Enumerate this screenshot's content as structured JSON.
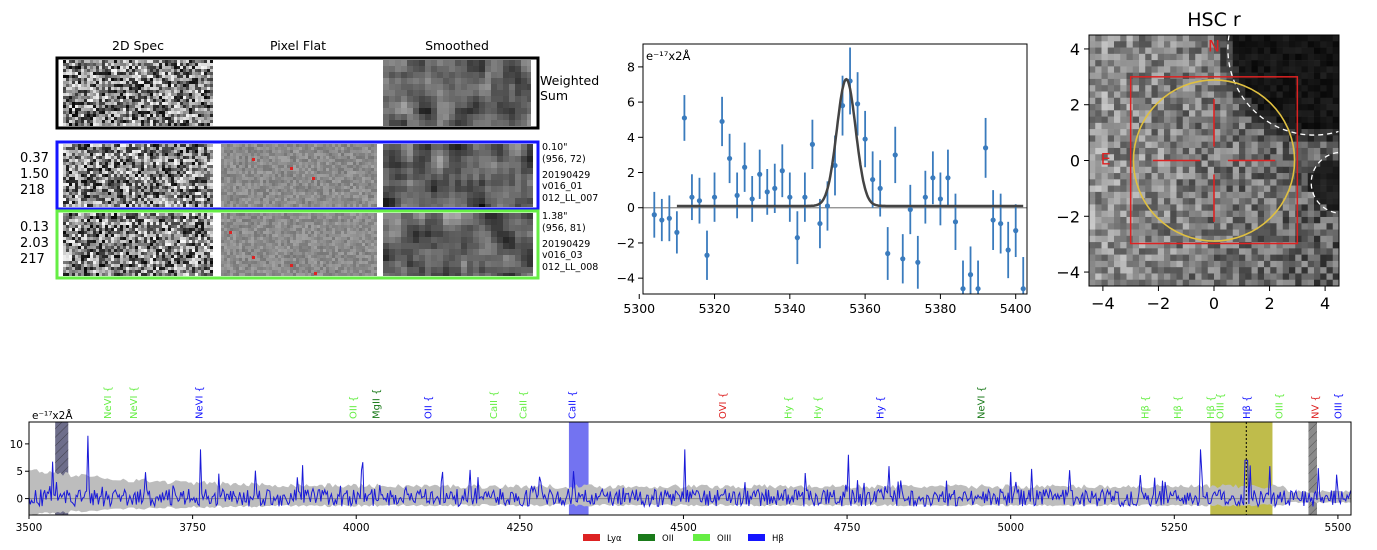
{
  "cutouts": {
    "column_titles": [
      "2D Spec",
      "Pixel Flat",
      "Smoothed"
    ],
    "weighted_label": [
      "Weighted",
      "Sum"
    ],
    "rows": [
      {
        "left_values": [
          "0.37",
          "1.50",
          "218"
        ],
        "info": [
          "0.10\"",
          "(956, 72)",
          "20190429",
          "v016_01",
          "012_LL_007"
        ],
        "frame_color": "#1515ff"
      },
      {
        "left_values": [
          "0.13",
          "2.03",
          "217"
        ],
        "info": [
          "1.38\"",
          "(956, 81)",
          "20190429",
          "v016_03",
          "012_LL_008"
        ],
        "frame_color": "#66ee44"
      }
    ]
  },
  "chart_data": [
    {
      "type": "scatter",
      "title": "",
      "unit_label": "e⁻¹⁷x2Å",
      "xlim": [
        5301,
        5403
      ],
      "ylim": [
        -4.9,
        9.3
      ],
      "x_ticks": [
        5300,
        5320,
        5340,
        5360,
        5380,
        5400
      ],
      "y_ticks": [
        -4,
        -2,
        0,
        2,
        4,
        6,
        8
      ],
      "series": [
        {
          "x": [
            5304,
            5306,
            5308,
            5310,
            5312,
            5314,
            5316,
            5318,
            5320,
            5322,
            5324,
            5326,
            5328,
            5330,
            5332,
            5334,
            5336,
            5338,
            5340,
            5342,
            5344,
            5346,
            5348,
            5350,
            5352,
            5354,
            5356,
            5358,
            5360,
            5362,
            5364,
            5366,
            5368,
            5370,
            5372,
            5374,
            5376,
            5378,
            5380,
            5382,
            5384,
            5386,
            5388,
            5390,
            5392,
            5394,
            5396,
            5398,
            5400,
            5402
          ],
          "y": [
            -0.4,
            -0.7,
            -0.6,
            -1.4,
            5.1,
            0.6,
            0.4,
            -2.7,
            0.6,
            4.9,
            2.8,
            0.7,
            2.3,
            0.5,
            1.9,
            0.9,
            1.1,
            2.1,
            0.6,
            -1.7,
            0.6,
            3.6,
            -0.9,
            0.1,
            2.4,
            5.8,
            7.2,
            5.9,
            3.9,
            1.6,
            1.1,
            -2.6,
            3.0,
            -2.9,
            -0.1,
            -3.1,
            0.6,
            1.7,
            0.5,
            1.7,
            -0.8,
            -4.6,
            -3.8,
            -4.6,
            3.4,
            -0.7,
            -0.9,
            -2.4,
            -1.3,
            -4.6
          ],
          "err": [
            1.3,
            1.2,
            1.3,
            1.2,
            1.3,
            1.3,
            1.3,
            1.4,
            1.4,
            1.4,
            1.4,
            1.3,
            1.4,
            1.3,
            1.4,
            1.3,
            1.4,
            1.5,
            1.4,
            1.5,
            1.4,
            1.4,
            1.4,
            1.4,
            1.7,
            1.7,
            1.9,
            1.8,
            1.6,
            1.6,
            1.6,
            1.5,
            1.6,
            1.4,
            1.4,
            1.5,
            1.5,
            1.5,
            1.5,
            1.6,
            1.6,
            1.6,
            1.6,
            1.6,
            1.7,
            1.7,
            1.7,
            1.6,
            1.5,
            1.8
          ],
          "color": "#3a7bbd"
        }
      ],
      "fit": {
        "x0": 5310,
        "x1": 5402,
        "center": 5355,
        "sigma": 2.5,
        "amp": 7.2,
        "baseline": 0.1,
        "color": "#444444"
      }
    },
    {
      "type": "heatmap",
      "title": "HSC r",
      "xlim": [
        -4.5,
        4.5
      ],
      "ylim": [
        -4.5,
        4.5
      ],
      "x_ticks": [
        -4,
        -2,
        0,
        2,
        4
      ],
      "y_ticks": [
        -4,
        -2,
        0,
        2,
        4
      ],
      "north_label": "N",
      "east_label": "E",
      "circle_radius": 2.9,
      "box_half": 3.0,
      "label_color": "#dd2222",
      "circle_color": "#e0c040"
    },
    {
      "type": "line",
      "unit_label": "e⁻¹⁷x2Å",
      "xlim": [
        3500,
        5520
      ],
      "ylim": [
        -3,
        14
      ],
      "x_ticks": [
        3500,
        3750,
        4000,
        4250,
        4500,
        4750,
        5000,
        5250,
        5500
      ],
      "y_ticks": [
        0,
        5,
        10
      ],
      "line_color": "#1a1ad8",
      "error_color": "#bdbdbd",
      "line_markers": [
        {
          "label": "NeVI",
          "x": 3620,
          "color": "#66ee44"
        },
        {
          "label": "NeVI",
          "x": 3660,
          "color": "#66ee44"
        },
        {
          "label": "NeVI",
          "x": 3760,
          "color": "#1515ff"
        },
        {
          "label": "OII",
          "x": 3995,
          "color": "#66ee44"
        },
        {
          "label": "MgII",
          "x": 4030,
          "color": "#1a7a1a"
        },
        {
          "label": "OII",
          "x": 4110,
          "color": "#1515ff"
        },
        {
          "label": "CaII",
          "x": 4210,
          "color": "#66ee44"
        },
        {
          "label": "CaII",
          "x": 4255,
          "color": "#66ee44"
        },
        {
          "label": "CaII",
          "x": 4330,
          "color": "#1515ff"
        },
        {
          "label": "OVI",
          "x": 4560,
          "color": "#dd2222"
        },
        {
          "label": "Hy",
          "x": 4660,
          "color": "#66ee44"
        },
        {
          "label": "Hy",
          "x": 4705,
          "color": "#66ee44"
        },
        {
          "label": "Hy",
          "x": 4800,
          "color": "#1515ff"
        },
        {
          "label": "NeVI",
          "x": 4955,
          "color": "#1a7a1a"
        },
        {
          "label": "Hβ",
          "x": 5205,
          "color": "#66ee44"
        },
        {
          "label": "Hβ",
          "x": 5255,
          "color": "#66ee44"
        },
        {
          "label": "Hβ",
          "x": 5305,
          "color": "#66ee44"
        },
        {
          "label": "OIII",
          "x": 5320,
          "color": "#66ee44"
        },
        {
          "label": "Hβ",
          "x": 5360,
          "color": "#1515ff"
        },
        {
          "label": "OIII",
          "x": 5410,
          "color": "#66ee44"
        },
        {
          "label": "NV",
          "x": 5465,
          "color": "#dd2222"
        },
        {
          "label": "OIII",
          "x": 5500,
          "color": "#1515ff"
        }
      ],
      "bands": [
        {
          "x0": 3540,
          "x1": 3560,
          "color": "#555577",
          "hatched": true
        },
        {
          "x0": 4325,
          "x1": 4355,
          "color": "#5a5aef",
          "hatched": false
        },
        {
          "x0": 5305,
          "x1": 5400,
          "color": "#b4b02c",
          "hatched": false
        },
        {
          "x0": 5455,
          "x1": 5468,
          "color": "#777777",
          "hatched": true
        }
      ],
      "legend": [
        {
          "label": "Lyα",
          "color": "#dd2222"
        },
        {
          "label": "OII",
          "color": "#1a7a1a"
        },
        {
          "label": "OIII",
          "color": "#66ee44"
        },
        {
          "label": "Hβ",
          "color": "#1515ff"
        }
      ]
    }
  ]
}
